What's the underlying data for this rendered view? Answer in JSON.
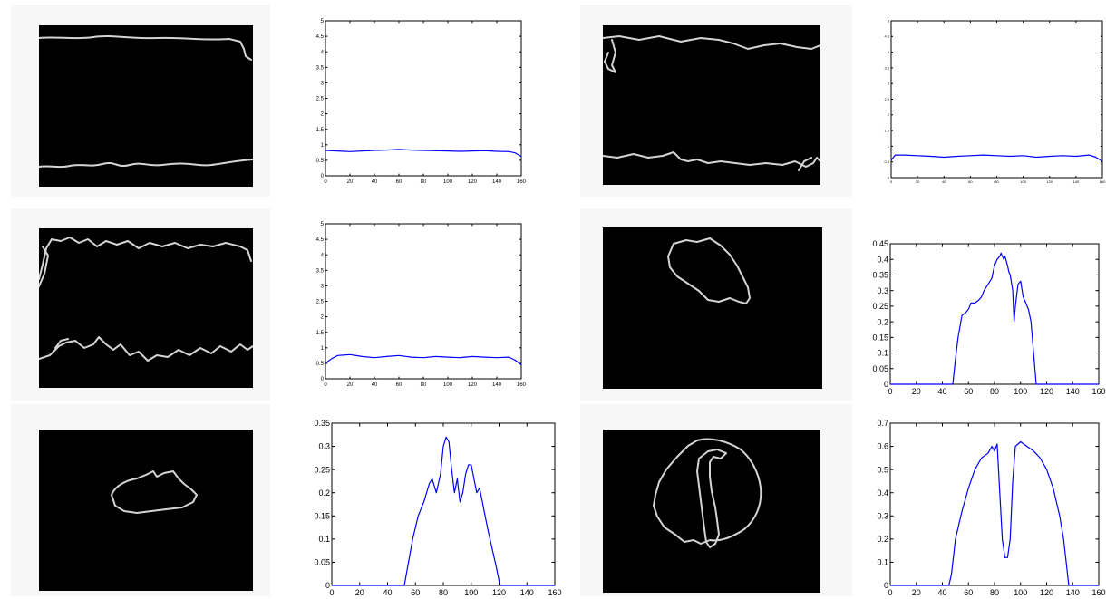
{
  "colors": {
    "line": "#0000ff",
    "image_background": "#000000",
    "contour": "#d4d4d4"
  },
  "images": [
    {
      "name": "edge-image-1",
      "content": "two horizontal edge contours"
    },
    {
      "name": "edge-image-2",
      "content": "two horizontal edge contours"
    },
    {
      "name": "edge-image-3",
      "content": "two wavy horizontal edge contours"
    },
    {
      "name": "edge-image-4",
      "content": "single closed blob contour"
    },
    {
      "name": "edge-image-5",
      "content": "single closed blob contour"
    },
    {
      "name": "edge-image-6",
      "content": "circular contour with inner shape"
    }
  ],
  "chart_data": [
    {
      "type": "line",
      "title": "",
      "xlabel": "",
      "ylabel": "",
      "xlim": [
        0,
        160
      ],
      "ylim": [
        0,
        5
      ],
      "xticks": [
        "0",
        "20",
        "40",
        "60",
        "80",
        "100",
        "120",
        "140",
        "160"
      ],
      "yticks": [
        "0",
        "0.5",
        "1",
        "1.5",
        "2",
        "2.5",
        "3",
        "3.5",
        "4",
        "4.5",
        "5"
      ],
      "grid": false,
      "series": [
        {
          "x": [
            0,
            10,
            20,
            30,
            40,
            50,
            60,
            70,
            80,
            90,
            100,
            110,
            120,
            130,
            140,
            150,
            155,
            160
          ],
          "y": [
            0.82,
            0.8,
            0.78,
            0.8,
            0.82,
            0.83,
            0.85,
            0.83,
            0.82,
            0.81,
            0.8,
            0.79,
            0.8,
            0.81,
            0.79,
            0.78,
            0.74,
            0.62
          ]
        }
      ]
    },
    {
      "type": "line",
      "title": "",
      "xlabel": "",
      "ylabel": "",
      "xlim": [
        0,
        160
      ],
      "ylim": [
        0,
        5
      ],
      "xticks": [
        "0",
        "20",
        "40",
        "60",
        "80",
        "100",
        "120",
        "140",
        "160"
      ],
      "yticks": [
        "0",
        "0.5",
        "1",
        "1.5",
        "2",
        "2.5",
        "3",
        "3.5",
        "4",
        "4.5",
        "5"
      ],
      "grid": false,
      "series": [
        {
          "x": [
            0,
            5,
            10,
            20,
            30,
            40,
            50,
            60,
            70,
            80,
            90,
            100,
            110,
            120,
            130,
            140,
            150,
            155,
            160
          ],
          "y": [
            0.5,
            0.65,
            0.75,
            0.78,
            0.72,
            0.68,
            0.72,
            0.75,
            0.7,
            0.68,
            0.72,
            0.7,
            0.68,
            0.72,
            0.7,
            0.68,
            0.7,
            0.6,
            0.45
          ]
        }
      ]
    },
    {
      "type": "line",
      "title": "",
      "xlabel": "",
      "ylabel": "",
      "xlim": [
        0,
        160
      ],
      "ylim": [
        0,
        5
      ],
      "xticks": [
        "0",
        "20",
        "40",
        "60",
        "80",
        "100",
        "120",
        "140",
        "160"
      ],
      "yticks": [
        "0",
        "0.5",
        "1",
        "1.5",
        "2",
        "2.5",
        "3",
        "3.5",
        "4",
        "4.5",
        "5"
      ],
      "grid": false,
      "series": [
        {
          "x": [
            0,
            3,
            10,
            20,
            30,
            40,
            50,
            60,
            70,
            80,
            90,
            100,
            110,
            120,
            130,
            140,
            150,
            155,
            160
          ],
          "y": [
            0.55,
            0.72,
            0.72,
            0.7,
            0.68,
            0.65,
            0.68,
            0.7,
            0.72,
            0.7,
            0.68,
            0.7,
            0.65,
            0.68,
            0.7,
            0.68,
            0.72,
            0.65,
            0.52
          ]
        }
      ]
    },
    {
      "type": "line",
      "title": "",
      "xlabel": "",
      "ylabel": "",
      "xlim": [
        0,
        160
      ],
      "ylim": [
        0,
        0.45
      ],
      "xticks": [
        "0",
        "20",
        "40",
        "60",
        "80",
        "100",
        "120",
        "140",
        "160"
      ],
      "yticks": [
        "0",
        "0.05",
        "0.1",
        "0.15",
        "0.2",
        "0.25",
        "0.3",
        "0.35",
        "0.4",
        "0.45"
      ],
      "grid": false,
      "series": [
        {
          "x": [
            0,
            48,
            50,
            52,
            55,
            58,
            60,
            62,
            65,
            68,
            70,
            72,
            75,
            78,
            80,
            82,
            84,
            85,
            87,
            88,
            90,
            91,
            92,
            94,
            95,
            96,
            98,
            100,
            102,
            104,
            106,
            108,
            110,
            112,
            120,
            160
          ],
          "y": [
            0,
            0,
            0.08,
            0.15,
            0.22,
            0.23,
            0.24,
            0.26,
            0.26,
            0.27,
            0.28,
            0.3,
            0.32,
            0.34,
            0.38,
            0.4,
            0.41,
            0.42,
            0.4,
            0.41,
            0.38,
            0.36,
            0.35,
            0.3,
            0.2,
            0.25,
            0.32,
            0.33,
            0.28,
            0.26,
            0.24,
            0.2,
            0.1,
            0,
            0,
            0
          ]
        }
      ]
    },
    {
      "type": "line",
      "title": "",
      "xlabel": "",
      "ylabel": "",
      "xlim": [
        0,
        160
      ],
      "ylim": [
        0,
        0.35
      ],
      "xticks": [
        "0",
        "20",
        "40",
        "60",
        "80",
        "100",
        "120",
        "140",
        "160"
      ],
      "yticks": [
        "0",
        "0.05",
        "0.1",
        "0.15",
        "0.2",
        "0.25",
        "0.3",
        "0.35"
      ],
      "grid": false,
      "series": [
        {
          "x": [
            0,
            52,
            55,
            58,
            62,
            66,
            70,
            72,
            75,
            78,
            80,
            82,
            84,
            86,
            88,
            90,
            92,
            94,
            96,
            98,
            100,
            102,
            104,
            106,
            108,
            110,
            112,
            115,
            118,
            120,
            121,
            160
          ],
          "y": [
            0,
            0,
            0.05,
            0.1,
            0.15,
            0.18,
            0.22,
            0.23,
            0.2,
            0.24,
            0.3,
            0.32,
            0.31,
            0.25,
            0.2,
            0.23,
            0.18,
            0.2,
            0.24,
            0.26,
            0.26,
            0.23,
            0.2,
            0.21,
            0.18,
            0.15,
            0.12,
            0.08,
            0.04,
            0.01,
            0,
            0
          ]
        }
      ]
    },
    {
      "type": "line",
      "title": "",
      "xlabel": "",
      "ylabel": "",
      "xlim": [
        0,
        160
      ],
      "ylim": [
        0,
        0.7
      ],
      "xticks": [
        "0",
        "20",
        "40",
        "60",
        "80",
        "100",
        "120",
        "140",
        "160"
      ],
      "yticks": [
        "0",
        "0.1",
        "0.2",
        "0.3",
        "0.4",
        "0.5",
        "0.6",
        "0.7"
      ],
      "grid": false,
      "series": [
        {
          "x": [
            0,
            45,
            47,
            50,
            55,
            60,
            65,
            70,
            75,
            78,
            80,
            82,
            84,
            86,
            88,
            90,
            92,
            94,
            96,
            98,
            100,
            105,
            110,
            115,
            120,
            125,
            130,
            133,
            136,
            137,
            160
          ],
          "y": [
            0,
            0,
            0.05,
            0.2,
            0.32,
            0.42,
            0.5,
            0.55,
            0.57,
            0.6,
            0.58,
            0.61,
            0.4,
            0.2,
            0.12,
            0.12,
            0.2,
            0.45,
            0.6,
            0.61,
            0.62,
            0.6,
            0.58,
            0.55,
            0.5,
            0.42,
            0.3,
            0.2,
            0.05,
            0,
            0
          ]
        }
      ]
    }
  ]
}
